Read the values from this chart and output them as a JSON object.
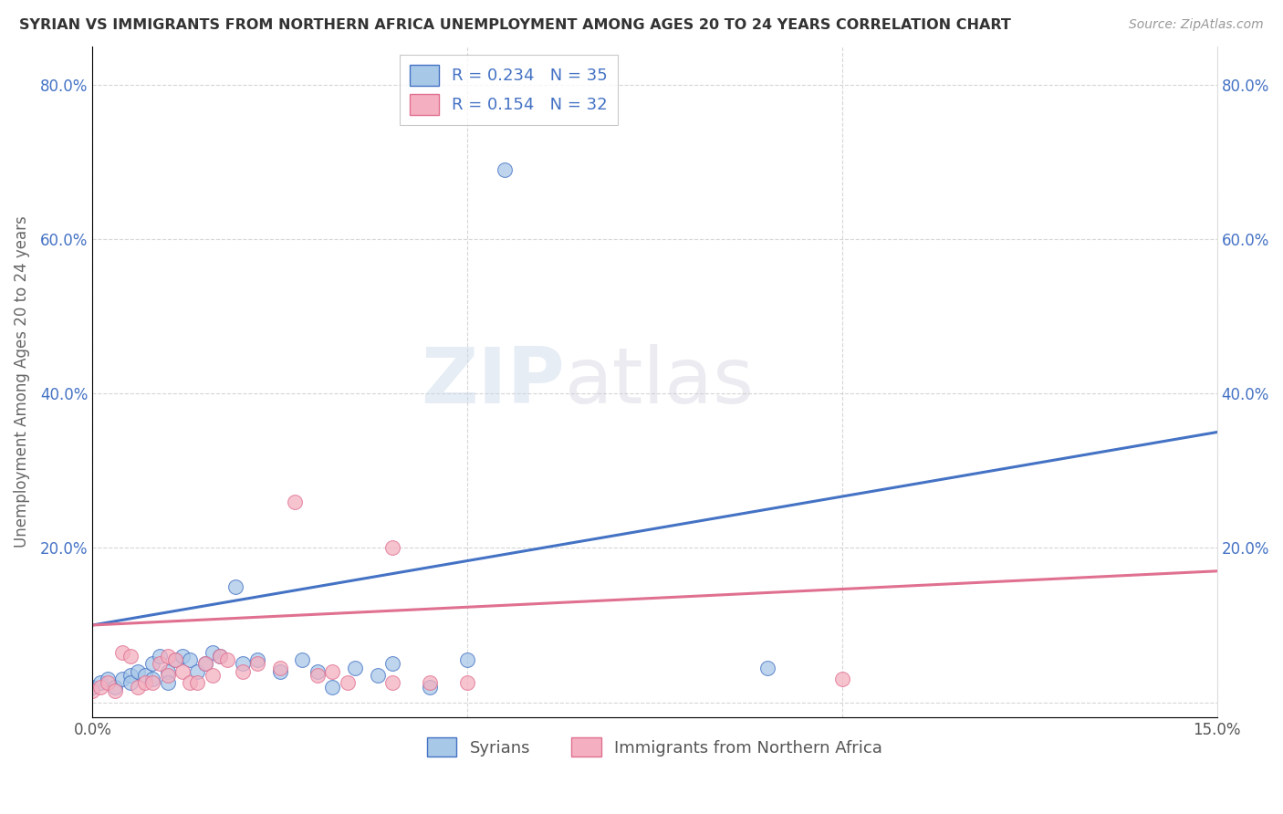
{
  "title": "SYRIAN VS IMMIGRANTS FROM NORTHERN AFRICA UNEMPLOYMENT AMONG AGES 20 TO 24 YEARS CORRELATION CHART",
  "source": "Source: ZipAtlas.com",
  "ylabel": "Unemployment Among Ages 20 to 24 years",
  "xlim": [
    0.0,
    15.0
  ],
  "ylim": [
    -2.0,
    85.0
  ],
  "x_ticks": [
    0.0,
    5.0,
    10.0,
    15.0
  ],
  "x_tick_labels": [
    "0.0%",
    "",
    "",
    "15.0%"
  ],
  "y_ticks": [
    0.0,
    20.0,
    40.0,
    60.0,
    80.0
  ],
  "y_tick_labels": [
    "",
    "20.0%",
    "40.0%",
    "60.0%",
    "80.0%"
  ],
  "legend_entries": [
    {
      "label": "R = 0.234   N = 35",
      "color": "#a8c8e8",
      "text_color": "#4472c4"
    },
    {
      "label": "R = 0.154   N = 32",
      "color": "#f4b8c8",
      "text_color": "#4472c4"
    }
  ],
  "legend_labels_bottom": [
    "Syrians",
    "Immigrants from Northern Africa"
  ],
  "syrian_color": "#a8c8e8",
  "nafric_color": "#f4b0c0",
  "syrian_edge_color": "#4472c4",
  "nafric_edge_color": "#e07090",
  "syrian_line_color": "#4472c4",
  "nafric_line_color": "#e07090",
  "watermark_zip": "ZIP",
  "watermark_atlas": "atlas",
  "background_color": "#ffffff",
  "grid_color": "#cccccc",
  "syrian_scatter": [
    [
      0.0,
      2.0
    ],
    [
      0.1,
      2.5
    ],
    [
      0.2,
      3.0
    ],
    [
      0.3,
      2.0
    ],
    [
      0.4,
      3.0
    ],
    [
      0.5,
      3.5
    ],
    [
      0.5,
      2.5
    ],
    [
      0.6,
      4.0
    ],
    [
      0.7,
      3.5
    ],
    [
      0.8,
      5.0
    ],
    [
      0.8,
      3.0
    ],
    [
      0.9,
      6.0
    ],
    [
      1.0,
      4.0
    ],
    [
      1.0,
      2.5
    ],
    [
      1.1,
      5.5
    ],
    [
      1.2,
      6.0
    ],
    [
      1.3,
      5.5
    ],
    [
      1.4,
      4.0
    ],
    [
      1.5,
      5.0
    ],
    [
      1.6,
      6.5
    ],
    [
      1.7,
      6.0
    ],
    [
      1.9,
      15.0
    ],
    [
      2.0,
      5.0
    ],
    [
      2.2,
      5.5
    ],
    [
      2.5,
      4.0
    ],
    [
      2.8,
      5.5
    ],
    [
      3.0,
      4.0
    ],
    [
      3.2,
      2.0
    ],
    [
      3.5,
      4.5
    ],
    [
      3.8,
      3.5
    ],
    [
      4.0,
      5.0
    ],
    [
      4.5,
      2.0
    ],
    [
      5.0,
      5.5
    ],
    [
      9.0,
      4.5
    ],
    [
      5.5,
      69.0
    ]
  ],
  "nafric_scatter": [
    [
      0.0,
      1.5
    ],
    [
      0.1,
      2.0
    ],
    [
      0.2,
      2.5
    ],
    [
      0.3,
      1.5
    ],
    [
      0.4,
      6.5
    ],
    [
      0.5,
      6.0
    ],
    [
      0.6,
      2.0
    ],
    [
      0.7,
      2.5
    ],
    [
      0.8,
      2.5
    ],
    [
      0.9,
      5.0
    ],
    [
      1.0,
      3.5
    ],
    [
      1.0,
      6.0
    ],
    [
      1.1,
      5.5
    ],
    [
      1.2,
      4.0
    ],
    [
      1.3,
      2.5
    ],
    [
      1.4,
      2.5
    ],
    [
      1.5,
      5.0
    ],
    [
      1.6,
      3.5
    ],
    [
      1.7,
      6.0
    ],
    [
      1.8,
      5.5
    ],
    [
      2.0,
      4.0
    ],
    [
      2.2,
      5.0
    ],
    [
      2.5,
      4.5
    ],
    [
      2.7,
      26.0
    ],
    [
      3.0,
      3.5
    ],
    [
      3.2,
      4.0
    ],
    [
      3.4,
      2.5
    ],
    [
      4.0,
      2.5
    ],
    [
      4.0,
      20.0
    ],
    [
      4.5,
      2.5
    ],
    [
      5.0,
      2.5
    ],
    [
      10.0,
      3.0
    ]
  ],
  "syrian_trend": {
    "x": [
      0.0,
      15.0
    ],
    "y": [
      10.0,
      35.0
    ]
  },
  "nafric_trend": {
    "x": [
      0.0,
      15.0
    ],
    "y": [
      10.0,
      17.0
    ]
  }
}
